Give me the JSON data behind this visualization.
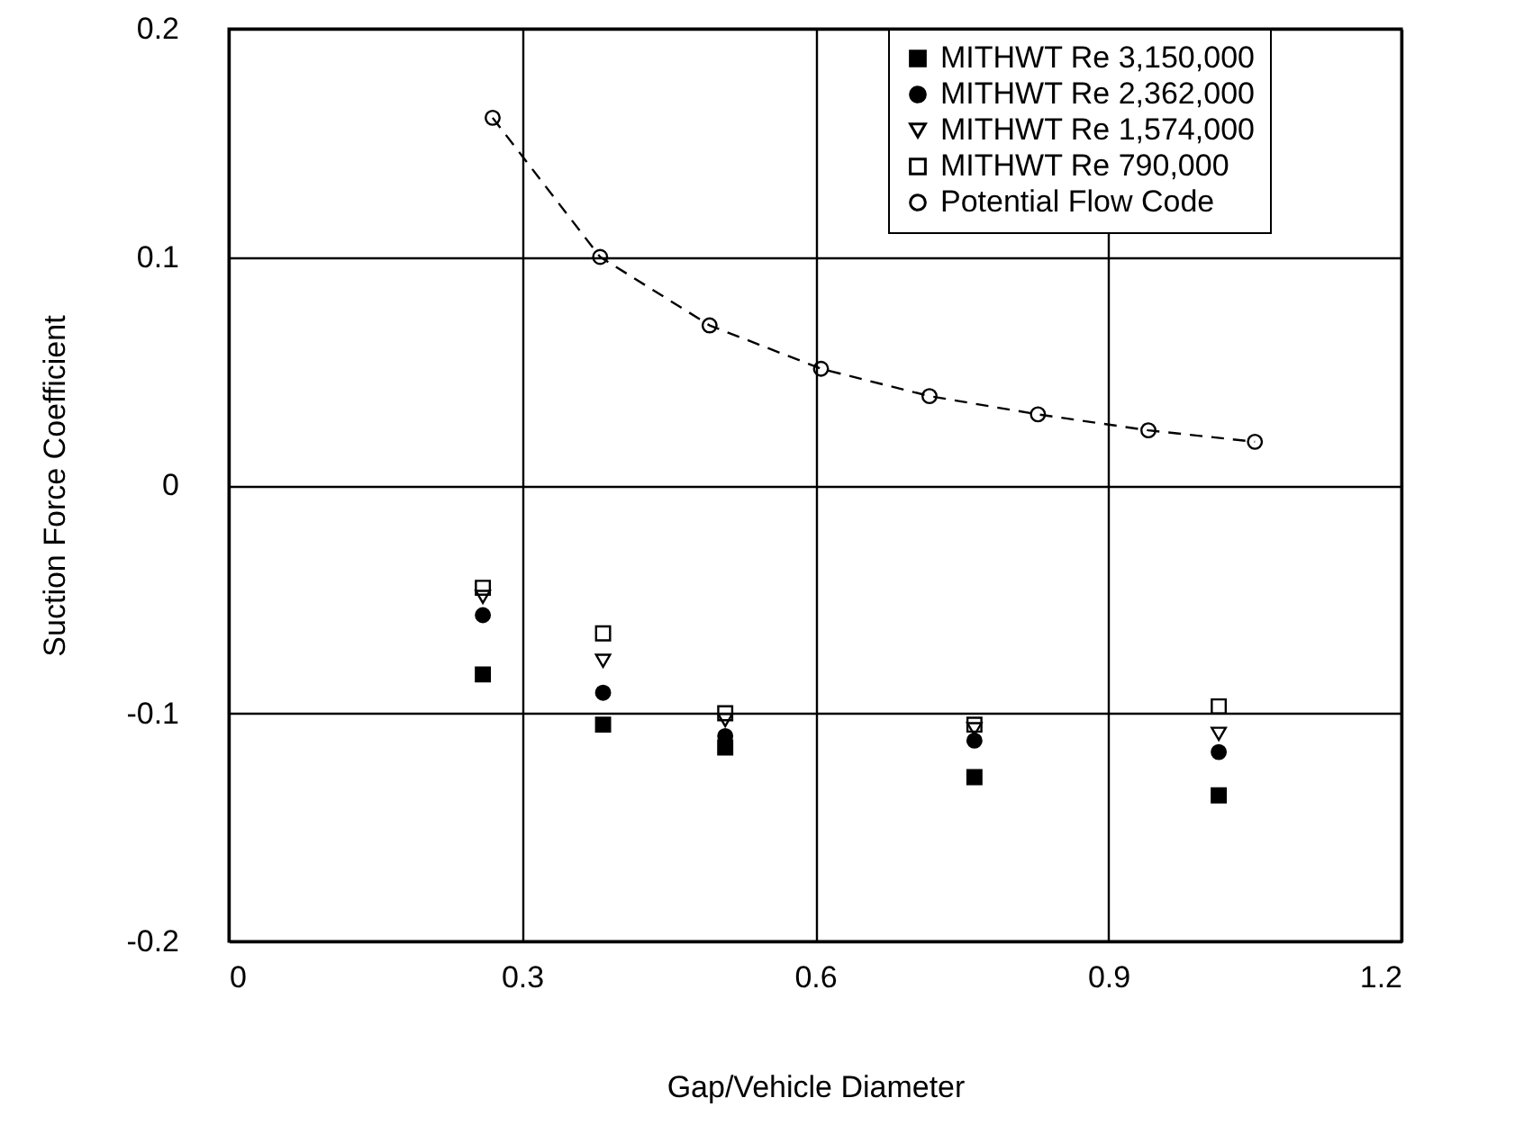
{
  "chart_data": {
    "type": "scatter",
    "xlabel": "Gap/Vehicle Diameter",
    "ylabel": "Suction Force Coefficient",
    "xlim": [
      0,
      1.2
    ],
    "xticks": [
      0,
      0.3,
      0.6,
      0.9,
      1.2
    ],
    "ylim": [
      -0.2,
      0.2
    ],
    "yticks": [
      -0.2,
      -0.1,
      0,
      0.1,
      0.2
    ],
    "grid": true,
    "legend": "top right",
    "series": [
      {
        "name": "MITHWT Re 3,150,000",
        "type": "scatter",
        "marker": "square",
        "color": "#000000",
        "x": [
          0.26,
          0.383,
          0.508,
          0.763,
          1.013
        ],
        "values": [
          -0.083,
          -0.105,
          -0.115,
          -0.128,
          -0.136
        ]
      },
      {
        "name": "MITHWT Re 2,362,000",
        "type": "scatter",
        "marker": "circle",
        "color": "#000000",
        "x": [
          0.26,
          0.383,
          0.508,
          0.763,
          1.013
        ],
        "values": [
          -0.057,
          -0.091,
          -0.11,
          -0.112,
          -0.117
        ]
      },
      {
        "name": "MITHWT Re 1,574,000",
        "type": "scatter",
        "marker": "triangle-down-open",
        "color": "#000000",
        "x": [
          0.26,
          0.383,
          0.508,
          0.763,
          1.013
        ],
        "values": [
          -0.049,
          -0.077,
          -0.103,
          -0.107,
          -0.109
        ]
      },
      {
        "name": "MITHWT Re 790,000",
        "type": "scatter",
        "marker": "square-open",
        "color": "#000000",
        "x": [
          0.26,
          0.383,
          0.508,
          0.763,
          1.013
        ],
        "values": [
          -0.045,
          -0.065,
          -0.1,
          -0.105,
          -0.097
        ]
      },
      {
        "name": "Potential Flow Code",
        "type": "line",
        "marker": "circle-open",
        "line_style": "dashed",
        "color": "#000000",
        "x": [
          0.27,
          0.38,
          0.492,
          0.606,
          0.717,
          0.828,
          0.941,
          1.05
        ],
        "values": [
          0.161,
          0.1,
          0.07,
          0.051,
          0.039,
          0.031,
          0.024,
          0.019
        ]
      }
    ]
  }
}
